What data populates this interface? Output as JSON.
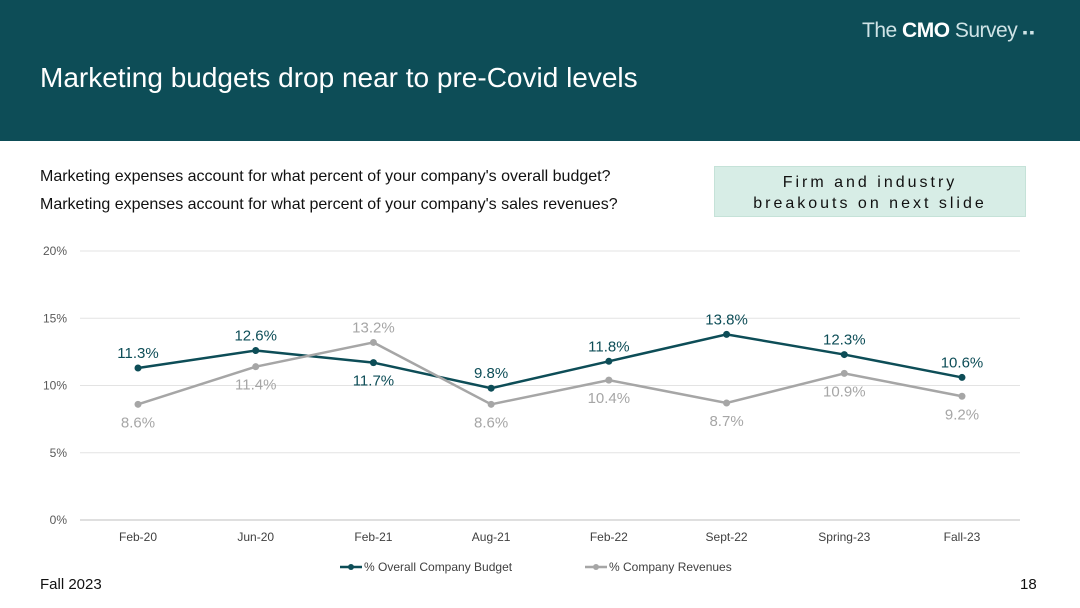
{
  "header": {
    "title": "Marketing budgets drop near to pre-Covid levels",
    "logo_pre": "The ",
    "logo_bold": "CMO",
    "logo_post": " Survey"
  },
  "questions": [
    "Marketing expenses account for what percent of your company's overall budget?",
    "Marketing expenses account for what percent of your company's sales revenues?"
  ],
  "callout": {
    "line1": "Firm and industry",
    "line2": "breakouts on next slide"
  },
  "footer": {
    "left": "Fall 2023",
    "page": "18"
  },
  "colors": {
    "budget": "#0d4d57",
    "revenue": "#a6a6a6"
  },
  "chart_data": {
    "type": "line",
    "categories": [
      "Feb-20",
      "Jun-20",
      "Feb-21",
      "Aug-21",
      "Feb-22",
      "Sept-22",
      "Spring-23",
      "Fall-23"
    ],
    "series": [
      {
        "name": "% Overall Company Budget",
        "values": [
          11.3,
          12.6,
          11.7,
          9.8,
          11.8,
          13.8,
          12.3,
          10.6
        ],
        "labels": [
          "11.3%",
          "12.6%",
          "11.7%",
          "9.8%",
          "11.8%",
          "13.8%",
          "12.3%",
          "10.6%"
        ]
      },
      {
        "name": "% Company Revenues",
        "values": [
          8.6,
          11.4,
          13.2,
          8.6,
          10.4,
          8.7,
          10.9,
          9.2
        ],
        "labels": [
          "8.6%",
          "11.4%",
          "13.2%",
          "8.6%",
          "10.4%",
          "8.7%",
          "10.9%",
          "9.2%"
        ]
      }
    ],
    "yticks": [
      "0%",
      "5%",
      "10%",
      "15%",
      "20%"
    ],
    "ylim": [
      0,
      20
    ],
    "grid": true,
    "legend": "bottom"
  }
}
